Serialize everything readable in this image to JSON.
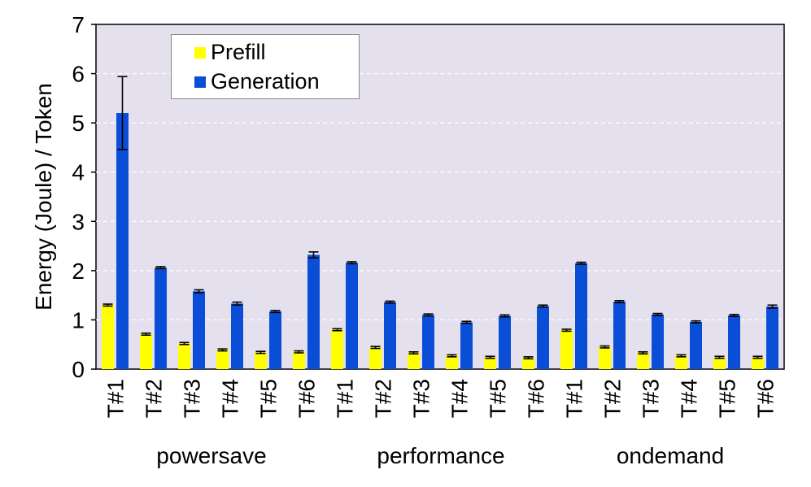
{
  "chart_data": {
    "type": "bar",
    "ylabel": "Energy (Joule) / Token",
    "ylim": [
      0,
      7
    ],
    "yticks": [
      "0",
      "1",
      "2",
      "3",
      "4",
      "5",
      "6",
      "7"
    ],
    "grid": "horizontal dashed",
    "legend_position": "top-left",
    "groups": [
      "powersave",
      "performance",
      "ondemand"
    ],
    "categories": [
      "T#1",
      "T#2",
      "T#3",
      "T#4",
      "T#5",
      "T#6",
      "T#1",
      "T#2",
      "T#3",
      "T#4",
      "T#5",
      "T#6",
      "T#1",
      "T#2",
      "T#3",
      "T#4",
      "T#5",
      "T#6"
    ],
    "series": [
      {
        "name": "Prefill",
        "color": "#ffff00",
        "values": [
          1.3,
          0.71,
          0.52,
          0.39,
          0.34,
          0.35,
          0.8,
          0.44,
          0.33,
          0.27,
          0.24,
          0.23,
          0.79,
          0.45,
          0.33,
          0.27,
          0.24,
          0.24
        ],
        "errors": [
          0.02,
          0.02,
          0.02,
          0.02,
          0.02,
          0.02,
          0.02,
          0.02,
          0.02,
          0.02,
          0.02,
          0.02,
          0.02,
          0.02,
          0.02,
          0.02,
          0.02,
          0.02
        ]
      },
      {
        "name": "Generation",
        "color": "#0a4ed8",
        "values": [
          5.2,
          2.06,
          1.58,
          1.33,
          1.17,
          2.32,
          2.16,
          1.36,
          1.1,
          0.95,
          1.08,
          1.28,
          2.15,
          1.37,
          1.11,
          0.96,
          1.09,
          1.27
        ],
        "errors": [
          0.74,
          0.02,
          0.03,
          0.03,
          0.02,
          0.06,
          0.02,
          0.02,
          0.02,
          0.02,
          0.02,
          0.02,
          0.02,
          0.02,
          0.02,
          0.02,
          0.02,
          0.03
        ]
      }
    ]
  }
}
